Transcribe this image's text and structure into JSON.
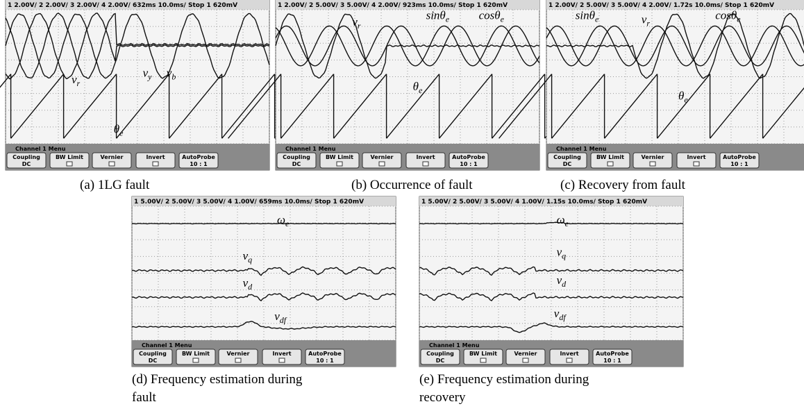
{
  "menu": {
    "title": "Channel 1 Menu",
    "buttons": [
      {
        "top": "Coupling",
        "bottom": "DC"
      },
      {
        "top": "BW Limit"
      },
      {
        "top": "Vernier"
      },
      {
        "top": "Invert"
      },
      {
        "top": "AutoProbe",
        "bottom": "10 : 1"
      }
    ]
  },
  "panels": [
    {
      "header": "1 2.00V/  2 2.00V/  3 2.00V/  4 2.00V/    632ms   10.0ms/   Stop  1  620mV",
      "labels": [
        {
          "base": "v",
          "sub": "r"
        },
        {
          "base": "v",
          "sub": "y"
        },
        {
          "base": "v",
          "sub": "b"
        },
        {
          "base": "θ",
          "sub": "e"
        }
      ],
      "caption": [
        "(a) 1LG fault"
      ]
    },
    {
      "header": "1 2.00V/  2 5.00V/  3 5.00V/  4 2.00V/    923ms   10.0ms/   Stop  1  620mV",
      "labels": [
        {
          "base": "v",
          "sub": "r"
        },
        {
          "base": "sinθ",
          "sub": "e"
        },
        {
          "base": "cosθ",
          "sub": "e"
        },
        {
          "base": "θ",
          "sub": "e"
        }
      ],
      "caption": [
        "(b) Occurrence of fault"
      ]
    },
    {
      "header": "1 2.00V/  2 5.00V/  3 5.00V/  4 2.00V/    1.72s   10.0ms/   Stop  1  620mV",
      "labels": [
        {
          "base": "sinθ",
          "sub": "e"
        },
        {
          "base": "v",
          "sub": "r"
        },
        {
          "base": "cosθ",
          "sub": "e"
        },
        {
          "base": "θ",
          "sub": "e"
        }
      ],
      "caption": [
        "(c) Recovery from fault"
      ]
    },
    {
      "header": "1 5.00V/  2 5.00V/  3 5.00V/  4 1.00V/    659ms   10.0ms/   Stop  1  620mV",
      "labels": [
        {
          "base": "ω",
          "sub": "e"
        },
        {
          "base": "v",
          "sub": "q"
        },
        {
          "base": "v",
          "sub": "d"
        },
        {
          "base": "v",
          "sub": "df"
        }
      ],
      "caption": [
        "(d) Frequency estimation during",
        "fault"
      ]
    },
    {
      "header": "1 5.00V/  2 5.00V/  3 5.00V/  4 1.00V/    1.15s   10.0ms/   Stop  1  620mV",
      "labels": [
        {
          "base": "ω",
          "sub": "e"
        },
        {
          "base": "v",
          "sub": "q"
        },
        {
          "base": "v",
          "sub": "d"
        },
        {
          "base": "v",
          "sub": "df"
        }
      ],
      "caption": [
        "(e) Frequency estimation during",
        "recovery"
      ]
    }
  ]
}
